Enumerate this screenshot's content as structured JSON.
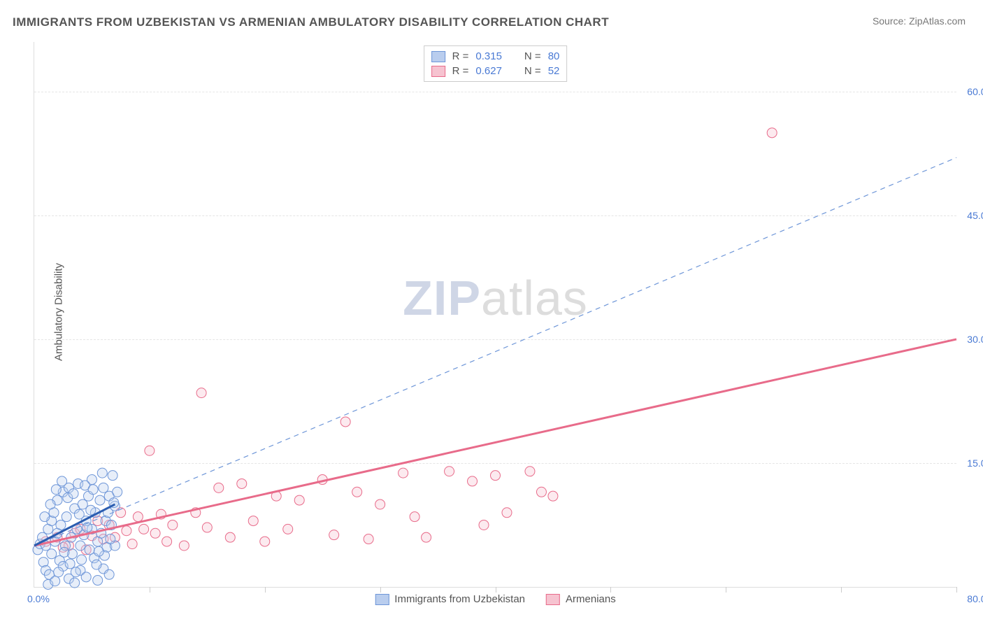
{
  "title": "IMMIGRANTS FROM UZBEKISTAN VS ARMENIAN AMBULATORY DISABILITY CORRELATION CHART",
  "source_prefix": "Source: ",
  "source_name": "ZipAtlas.com",
  "ylabel": "Ambulatory Disability",
  "watermark_a": "ZIP",
  "watermark_b": "atlas",
  "chart": {
    "type": "scatter-with-trendlines",
    "background_color": "#ffffff",
    "grid_color": "#e5e5e5",
    "axis_color": "#dddddd",
    "label_color": "#4a7ad4",
    "title_color": "#555555",
    "title_fontsize": 17,
    "label_fontsize": 14,
    "xlim": [
      0,
      80
    ],
    "ylim": [
      0,
      66
    ],
    "xtick_step": 10,
    "ytick_step": 15,
    "ytick_labels": [
      "15.0%",
      "30.0%",
      "45.0%",
      "60.0%"
    ],
    "x_origin_label": "0.0%",
    "x_max_label": "80.0%",
    "marker_radius": 7,
    "marker_fill_opacity": 0.35,
    "marker_stroke_width": 1,
    "series": [
      {
        "name": "Immigrants from Uzbekistan",
        "color": "#6e96d8",
        "fill": "#b9cdee",
        "R": "0.315",
        "N": "80",
        "trend": {
          "dashed": true,
          "color": "#6e96d8",
          "width": 1.2,
          "x1": 0,
          "y1": 5,
          "x2": 80,
          "y2": 52
        },
        "trend_short": {
          "dashed": false,
          "color": "#2b5db0",
          "width": 3,
          "x1": 0,
          "y1": 5,
          "x2": 7,
          "y2": 10
        },
        "points": [
          [
            0.3,
            4.5
          ],
          [
            0.5,
            5.2
          ],
          [
            0.7,
            6.0
          ],
          [
            0.8,
            3.0
          ],
          [
            1.0,
            5.0
          ],
          [
            1.0,
            2.0
          ],
          [
            1.2,
            7.0
          ],
          [
            1.3,
            1.5
          ],
          [
            1.5,
            8.0
          ],
          [
            1.5,
            4.0
          ],
          [
            1.7,
            9.0
          ],
          [
            1.8,
            5.5
          ],
          [
            2.0,
            6.5
          ],
          [
            2.0,
            10.5
          ],
          [
            2.2,
            3.2
          ],
          [
            2.3,
            7.5
          ],
          [
            2.5,
            11.5
          ],
          [
            2.5,
            2.5
          ],
          [
            2.7,
            5.0
          ],
          [
            2.8,
            8.5
          ],
          [
            3.0,
            1.0
          ],
          [
            3.0,
            12.0
          ],
          [
            3.2,
            6.0
          ],
          [
            3.3,
            4.0
          ],
          [
            3.5,
            9.5
          ],
          [
            3.5,
            0.5
          ],
          [
            3.7,
            7.0
          ],
          [
            3.8,
            12.5
          ],
          [
            4.0,
            5.0
          ],
          [
            4.0,
            2.0
          ],
          [
            4.2,
            10.0
          ],
          [
            4.3,
            6.3
          ],
          [
            4.5,
            8.0
          ],
          [
            4.5,
            1.2
          ],
          [
            4.7,
            11.0
          ],
          [
            4.8,
            4.5
          ],
          [
            5.0,
            13.0
          ],
          [
            5.0,
            7.0
          ],
          [
            5.2,
            3.5
          ],
          [
            5.3,
            9.0
          ],
          [
            5.5,
            5.5
          ],
          [
            5.5,
            0.8
          ],
          [
            5.7,
            10.5
          ],
          [
            5.8,
            6.5
          ],
          [
            6.0,
            12.0
          ],
          [
            6.0,
            2.2
          ],
          [
            6.2,
            8.0
          ],
          [
            6.3,
            4.8
          ],
          [
            6.5,
            11.0
          ],
          [
            6.5,
            1.5
          ],
          [
            6.7,
            7.5
          ],
          [
            6.8,
            13.5
          ],
          [
            7.0,
            5.0
          ],
          [
            7.0,
            9.8
          ],
          [
            1.2,
            0.3
          ],
          [
            1.8,
            0.7
          ],
          [
            2.1,
            1.8
          ],
          [
            2.4,
            12.8
          ],
          [
            2.9,
            10.8
          ],
          [
            3.1,
            2.8
          ],
          [
            3.4,
            11.3
          ],
          [
            3.9,
            8.8
          ],
          [
            4.1,
            3.3
          ],
          [
            4.4,
            12.3
          ],
          [
            4.9,
            9.3
          ],
          [
            5.1,
            11.8
          ],
          [
            5.4,
            2.7
          ],
          [
            5.9,
            13.8
          ],
          [
            6.1,
            3.8
          ],
          [
            6.4,
            9.0
          ],
          [
            6.9,
            10.2
          ],
          [
            0.9,
            8.5
          ],
          [
            1.4,
            10.0
          ],
          [
            1.9,
            11.8
          ],
          [
            2.6,
            4.2
          ],
          [
            3.6,
            1.8
          ],
          [
            4.6,
            7.2
          ],
          [
            5.6,
            4.3
          ],
          [
            6.6,
            5.8
          ],
          [
            7.2,
            11.5
          ]
        ]
      },
      {
        "name": "Armenians",
        "color": "#e86b8a",
        "fill": "#f6c3d0",
        "R": "0.627",
        "N": "52",
        "trend": {
          "dashed": false,
          "color": "#e86b8a",
          "width": 3,
          "x1": 0,
          "y1": 5,
          "x2": 80,
          "y2": 30
        },
        "points": [
          [
            1,
            5.5
          ],
          [
            2,
            6.0
          ],
          [
            3,
            5.0
          ],
          [
            3.5,
            6.5
          ],
          [
            4,
            7.0
          ],
          [
            4.5,
            4.5
          ],
          [
            5,
            6.2
          ],
          [
            5.5,
            8.0
          ],
          [
            6,
            5.8
          ],
          [
            6.5,
            7.5
          ],
          [
            7,
            6.0
          ],
          [
            7.5,
            9.0
          ],
          [
            8,
            6.8
          ],
          [
            8.5,
            5.2
          ],
          [
            9,
            8.5
          ],
          [
            9.5,
            7.0
          ],
          [
            10,
            16.5
          ],
          [
            10.5,
            6.5
          ],
          [
            11,
            8.8
          ],
          [
            12,
            7.5
          ],
          [
            13,
            5.0
          ],
          [
            14,
            9.0
          ],
          [
            14.5,
            23.5
          ],
          [
            15,
            7.2
          ],
          [
            16,
            12.0
          ],
          [
            17,
            6.0
          ],
          [
            18,
            12.5
          ],
          [
            19,
            8.0
          ],
          [
            20,
            5.5
          ],
          [
            21,
            11.0
          ],
          [
            22,
            7.0
          ],
          [
            23,
            10.5
          ],
          [
            25,
            13.0
          ],
          [
            26,
            6.3
          ],
          [
            27,
            20.0
          ],
          [
            28,
            11.5
          ],
          [
            29,
            5.8
          ],
          [
            30,
            10.0
          ],
          [
            32,
            13.8
          ],
          [
            33,
            8.5
          ],
          [
            34,
            6.0
          ],
          [
            36,
            14.0
          ],
          [
            38,
            12.8
          ],
          [
            39,
            7.5
          ],
          [
            40,
            13.5
          ],
          [
            41,
            9.0
          ],
          [
            43,
            14.0
          ],
          [
            44,
            11.5
          ],
          [
            45,
            11.0
          ],
          [
            64,
            55.0
          ],
          [
            2.5,
            4.8
          ],
          [
            11.5,
            5.5
          ]
        ]
      }
    ]
  },
  "legend_bottom": [
    {
      "label": "Immigrants from Uzbekistan",
      "fill": "#b9cdee",
      "stroke": "#6e96d8"
    },
    {
      "label": "Armenians",
      "fill": "#f6c3d0",
      "stroke": "#e86b8a"
    }
  ]
}
